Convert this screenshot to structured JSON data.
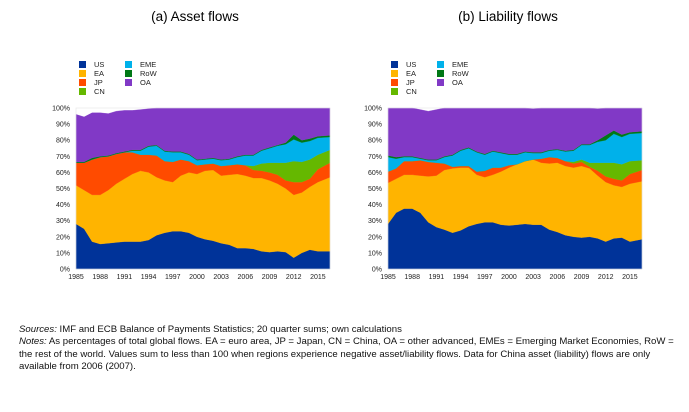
{
  "notes": {
    "sources_label": "Sources:",
    "sources_text": " IMF and ECB Balance of Payments Statistics; 20 quarter sums; own calculations",
    "notes_label": "Notes:",
    "notes_text": " As percentages of total global flows. EA = euro area, JP = Japan, CN = China, OA = other advanced, EMEs = Emerging Market Economies, RoW = the rest of the world. Values sum to less than 100 when regions experience negative asset/liability flows. Data for China asset (liability) flows are only available from 2006 (2007)."
  },
  "legend": [
    {
      "label": "US",
      "color": "#003399"
    },
    {
      "label": "EA",
      "color": "#FFB400"
    },
    {
      "label": "JP",
      "color": "#FF4B00"
    },
    {
      "label": "CN",
      "color": "#65B800"
    },
    {
      "label": "EME",
      "color": "#00B1EA"
    },
    {
      "label": "RoW",
      "color": "#007816"
    },
    {
      "label": "OA",
      "color": "#8139C6"
    }
  ],
  "chart_data": [
    {
      "type": "area",
      "stacked": true,
      "title": "(a) Asset flows",
      "xlabel": "",
      "ylabel": "",
      "ylim": [
        0,
        100
      ],
      "y_ticks": [
        "0%",
        "10%",
        "20%",
        "30%",
        "40%",
        "50%",
        "60%",
        "70%",
        "80%",
        "90%",
        "100%"
      ],
      "x_ticks": [
        "1985",
        "1988",
        "1991",
        "1994",
        "1997",
        "2000",
        "2003",
        "2006",
        "2009",
        "2012",
        "2015"
      ],
      "xlim": [
        1985,
        2016.5
      ],
      "legend_position": "top-left",
      "x": [
        1985,
        1986,
        1987,
        1988,
        1989,
        1990,
        1991,
        1992,
        1993,
        1994,
        1995,
        1996,
        1997,
        1998,
        1999,
        2000,
        2001,
        2002,
        2003,
        2004,
        2005,
        2006,
        2007,
        2008,
        2009,
        2010,
        2011,
        2012,
        2013,
        2014,
        2015,
        2016.5
      ],
      "series": [
        {
          "name": "US",
          "values": [
            28,
            25,
            17,
            15.5,
            16,
            16.5,
            17,
            17,
            17,
            18,
            21,
            22.5,
            23.5,
            23.5,
            22.5,
            20,
            18.5,
            17.5,
            16,
            15,
            13,
            13,
            12.5,
            11,
            10.5,
            11,
            10.5,
            7,
            10,
            12,
            11,
            11
          ]
        },
        {
          "name": "EA",
          "values": [
            24,
            24,
            29,
            30.5,
            33,
            36.5,
            39,
            42,
            44,
            42,
            36,
            32.5,
            30.5,
            34.5,
            37.5,
            39,
            42.5,
            44,
            42,
            43.5,
            46,
            45,
            44,
            45.5,
            44.5,
            42,
            39.5,
            39,
            37.5,
            39,
            43,
            46
          ]
        },
        {
          "name": "JP",
          "values": [
            14,
            17,
            22,
            23.5,
            21,
            18.5,
            16.5,
            13.5,
            10,
            11,
            13.5,
            12,
            12.5,
            10,
            7,
            5.5,
            4,
            4,
            6,
            6,
            6,
            6.5,
            5,
            4.5,
            5,
            5.5,
            5,
            8,
            6.5,
            5,
            8,
            9
          ]
        },
        {
          "name": "CN",
          "values": [
            0,
            0,
            0,
            0,
            0,
            0,
            0,
            0,
            0,
            0,
            0,
            0,
            0,
            0,
            0,
            0,
            0,
            0,
            0,
            0,
            0,
            0,
            2.5,
            4.5,
            6,
            7.5,
            11,
            13,
            12.5,
            12,
            9,
            8
          ]
        },
        {
          "name": "EME",
          "values": [
            0,
            0,
            0,
            0,
            0,
            0,
            0,
            1,
            2.5,
            5,
            6,
            6,
            6,
            4.5,
            4,
            3,
            3,
            3,
            3.5,
            3.5,
            4.5,
            6,
            6.5,
            8,
            9,
            10.5,
            11.5,
            13.5,
            12,
            11.5,
            10.5,
            8
          ]
        },
        {
          "name": "RoW",
          "values": [
            0.5,
            0.5,
            1,
            0.5,
            0.5,
            0.5,
            0.5,
            0.5,
            0.5,
            0.5,
            0.5,
            0.5,
            0.5,
            0.5,
            0.5,
            0.5,
            0.5,
            0.5,
            0.5,
            0.5,
            0.5,
            0.5,
            0.5,
            0.5,
            0.5,
            0.5,
            1,
            3,
            1.5,
            1.5,
            1,
            1
          ]
        },
        {
          "name": "OA",
          "values": [
            29.5,
            28,
            28,
            27,
            26,
            26,
            25.5,
            24.5,
            25,
            23,
            23,
            26.5,
            27,
            27,
            28.5,
            32,
            31.5,
            31,
            32,
            31.5,
            30,
            29,
            29,
            26,
            24.5,
            23,
            21.5,
            16.5,
            20,
            19,
            17.5,
            17
          ]
        }
      ]
    },
    {
      "type": "area",
      "stacked": true,
      "title": "(b) Liability flows",
      "xlabel": "",
      "ylabel": "",
      "ylim": [
        0,
        100
      ],
      "y_ticks": [
        "0%",
        "10%",
        "20%",
        "30%",
        "40%",
        "50%",
        "60%",
        "70%",
        "80%",
        "90%",
        "100%"
      ],
      "x_ticks": [
        "1985",
        "1988",
        "1991",
        "1994",
        "1997",
        "2000",
        "2003",
        "2006",
        "2009",
        "2012",
        "2015"
      ],
      "xlim": [
        1985,
        2016.5
      ],
      "legend_position": "top-left",
      "x": [
        1985,
        1986,
        1987,
        1988,
        1989,
        1990,
        1991,
        1992,
        1993,
        1994,
        1995,
        1996,
        1997,
        1998,
        1999,
        2000,
        2001,
        2002,
        2003,
        2004,
        2005,
        2006,
        2007,
        2008,
        2009,
        2010,
        2011,
        2012,
        2013,
        2014,
        2015,
        2016.5
      ],
      "series": [
        {
          "name": "US",
          "values": [
            28,
            35,
            37.5,
            37.5,
            35,
            29,
            26,
            24.5,
            22.5,
            24,
            26.5,
            28,
            29,
            29,
            27.5,
            27,
            27.5,
            28,
            27.5,
            27.5,
            24.5,
            23,
            21,
            20,
            19.5,
            20,
            19,
            17,
            19,
            19.5,
            17,
            18.5
          ]
        },
        {
          "name": "EA",
          "values": [
            25.5,
            21,
            21,
            21,
            23,
            28.5,
            32,
            37,
            40,
            39,
            36.5,
            30.5,
            28,
            29.5,
            33,
            36,
            37.5,
            39,
            40.5,
            38.5,
            41,
            43,
            43,
            43,
            44.5,
            42.5,
            39,
            37,
            33,
            31.5,
            36,
            36
          ]
        },
        {
          "name": "JP",
          "values": [
            7,
            6.5,
            8.5,
            8.5,
            9.5,
            9,
            8,
            4,
            1,
            1,
            1,
            2,
            4,
            4.5,
            2.5,
            1.5,
            0,
            0,
            0,
            2.5,
            4,
            3,
            3,
            2.5,
            2.5,
            1,
            3,
            3.5,
            4,
            4,
            6,
            7
          ]
        },
        {
          "name": "CN",
          "values": [
            0,
            0,
            0,
            0,
            0,
            0,
            0,
            0,
            0,
            0,
            0,
            0,
            0,
            0,
            0,
            0,
            0,
            0,
            0,
            0,
            0,
            0,
            0,
            1,
            1.5,
            2.5,
            5,
            8.5,
            10,
            10,
            8,
            6
          ]
        },
        {
          "name": "EME",
          "values": [
            9,
            6,
            2.5,
            2.5,
            1,
            1,
            1.5,
            4,
            7,
            9.5,
            11,
            12,
            10,
            10,
            9,
            6.5,
            6,
            5.5,
            4,
            3.5,
            4,
            5,
            6,
            7,
            9,
            11,
            13,
            14,
            18,
            17,
            17,
            17
          ]
        },
        {
          "name": "RoW",
          "values": [
            1,
            1,
            0.5,
            0.5,
            0.5,
            0.5,
            0.5,
            0.5,
            0.5,
            0.5,
            0.5,
            0.5,
            0.5,
            0.5,
            0.5,
            0.5,
            0.5,
            0.5,
            0.5,
            0.5,
            0.5,
            0.5,
            0.5,
            0.5,
            0.5,
            0.5,
            1,
            3,
            2,
            1.5,
            1,
            1
          ]
        },
        {
          "name": "OA",
          "values": [
            29.5,
            30.5,
            30,
            30,
            30,
            30,
            31,
            30,
            29,
            26,
            24.5,
            27,
            28.5,
            26.5,
            27.5,
            28.5,
            28.5,
            27,
            27,
            27.5,
            26,
            25.5,
            26.5,
            26,
            22.5,
            22.5,
            19.5,
            17,
            14,
            16.5,
            15,
            14.5
          ]
        }
      ]
    }
  ]
}
